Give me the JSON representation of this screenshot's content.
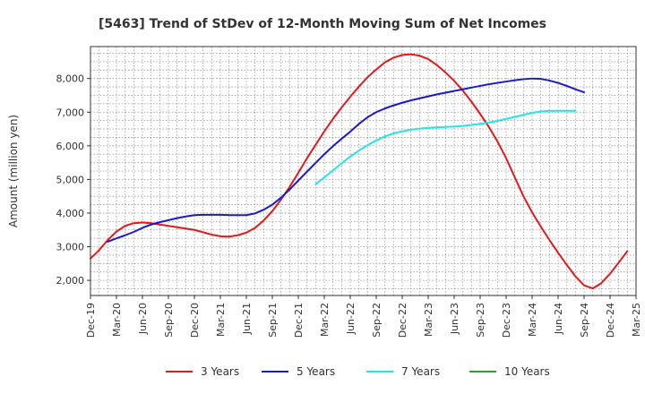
{
  "chart_data": {
    "type": "line",
    "title": "[5463]  Trend of StDev of 12-Month Moving Sum of Net Incomes",
    "ylabel": "Amount (million yen)",
    "xlabel": "",
    "ylim": [
      1550,
      8950
    ],
    "yticks": [
      2000,
      3000,
      4000,
      5000,
      6000,
      7000,
      8000
    ],
    "ytick_labels": [
      "2,000",
      "3,000",
      "4,000",
      "5,000",
      "6,000",
      "7,000",
      "8,000"
    ],
    "x_tick_labels": [
      "Dec-19",
      "Mar-20",
      "Jun-20",
      "Sep-20",
      "Dec-20",
      "Mar-21",
      "Jun-21",
      "Sep-21",
      "Dec-21",
      "Mar-22",
      "Jun-22",
      "Sep-22",
      "Dec-22",
      "Mar-23",
      "Jun-23",
      "Sep-23",
      "Dec-23",
      "Mar-24",
      "Jun-24",
      "Sep-24",
      "Dec-24",
      "Mar-25"
    ],
    "grid": true,
    "legend_position": "bottom",
    "series": [
      {
        "name": "3 Years",
        "color": "#e31a1c",
        "points": [
          [
            0,
            2650
          ],
          [
            1,
            2900
          ],
          [
            2,
            3200
          ],
          [
            3,
            3450
          ],
          [
            4,
            3620
          ],
          [
            5,
            3700
          ],
          [
            6,
            3720
          ],
          [
            7,
            3700
          ],
          [
            8,
            3660
          ],
          [
            9,
            3620
          ],
          [
            10,
            3580
          ],
          [
            11,
            3540
          ],
          [
            12,
            3500
          ],
          [
            13,
            3430
          ],
          [
            14,
            3360
          ],
          [
            15,
            3310
          ],
          [
            16,
            3300
          ],
          [
            17,
            3340
          ],
          [
            18,
            3420
          ],
          [
            19,
            3560
          ],
          [
            20,
            3780
          ],
          [
            21,
            4060
          ],
          [
            22,
            4400
          ],
          [
            23,
            4780
          ],
          [
            24,
            5200
          ],
          [
            25,
            5630
          ],
          [
            26,
            6030
          ],
          [
            27,
            6430
          ],
          [
            28,
            6800
          ],
          [
            29,
            7140
          ],
          [
            30,
            7460
          ],
          [
            31,
            7760
          ],
          [
            32,
            8040
          ],
          [
            33,
            8270
          ],
          [
            34,
            8480
          ],
          [
            35,
            8620
          ],
          [
            36,
            8700
          ],
          [
            37,
            8720
          ],
          [
            38,
            8680
          ],
          [
            39,
            8580
          ],
          [
            40,
            8400
          ],
          [
            41,
            8180
          ],
          [
            42,
            7930
          ],
          [
            43,
            7640
          ],
          [
            44,
            7310
          ],
          [
            45,
            6950
          ],
          [
            46,
            6560
          ],
          [
            47,
            6130
          ],
          [
            48,
            5630
          ],
          [
            49,
            5060
          ],
          [
            50,
            4500
          ],
          [
            51,
            4020
          ],
          [
            52,
            3600
          ],
          [
            53,
            3200
          ],
          [
            54,
            2820
          ],
          [
            55,
            2460
          ],
          [
            56,
            2120
          ],
          [
            57,
            1850
          ],
          [
            58,
            1760
          ],
          [
            59,
            1920
          ],
          [
            60,
            2200
          ],
          [
            61,
            2530
          ],
          [
            62,
            2870
          ]
        ]
      },
      {
        "name": "5 Years",
        "color": "#1a1acd",
        "points": [
          [
            2,
            3150
          ],
          [
            3,
            3250
          ],
          [
            4,
            3340
          ],
          [
            5,
            3440
          ],
          [
            6,
            3560
          ],
          [
            7,
            3660
          ],
          [
            8,
            3730
          ],
          [
            9,
            3790
          ],
          [
            10,
            3850
          ],
          [
            11,
            3900
          ],
          [
            12,
            3940
          ],
          [
            13,
            3950
          ],
          [
            14,
            3950
          ],
          [
            15,
            3950
          ],
          [
            16,
            3940
          ],
          [
            17,
            3940
          ],
          [
            18,
            3940
          ],
          [
            19,
            3990
          ],
          [
            20,
            4100
          ],
          [
            21,
            4250
          ],
          [
            22,
            4460
          ],
          [
            23,
            4700
          ],
          [
            24,
            4970
          ],
          [
            25,
            5230
          ],
          [
            26,
            5490
          ],
          [
            27,
            5750
          ],
          [
            28,
            5990
          ],
          [
            29,
            6210
          ],
          [
            30,
            6420
          ],
          [
            31,
            6650
          ],
          [
            32,
            6850
          ],
          [
            33,
            7000
          ],
          [
            34,
            7110
          ],
          [
            35,
            7200
          ],
          [
            36,
            7280
          ],
          [
            37,
            7350
          ],
          [
            38,
            7410
          ],
          [
            39,
            7470
          ],
          [
            40,
            7530
          ],
          [
            41,
            7580
          ],
          [
            42,
            7630
          ],
          [
            43,
            7680
          ],
          [
            44,
            7730
          ],
          [
            45,
            7780
          ],
          [
            46,
            7830
          ],
          [
            47,
            7870
          ],
          [
            48,
            7910
          ],
          [
            49,
            7950
          ],
          [
            50,
            7980
          ],
          [
            51,
            8000
          ],
          [
            52,
            7990
          ],
          [
            53,
            7940
          ],
          [
            54,
            7870
          ],
          [
            55,
            7780
          ],
          [
            56,
            7680
          ],
          [
            57,
            7590
          ]
        ]
      },
      {
        "name": "7 Years",
        "color": "#22e5e5",
        "points": [
          [
            26,
            4860
          ],
          [
            27,
            5060
          ],
          [
            28,
            5270
          ],
          [
            29,
            5480
          ],
          [
            30,
            5680
          ],
          [
            31,
            5860
          ],
          [
            32,
            6020
          ],
          [
            33,
            6160
          ],
          [
            34,
            6280
          ],
          [
            35,
            6370
          ],
          [
            36,
            6430
          ],
          [
            37,
            6480
          ],
          [
            38,
            6510
          ],
          [
            39,
            6530
          ],
          [
            40,
            6550
          ],
          [
            41,
            6560
          ],
          [
            42,
            6570
          ],
          [
            43,
            6590
          ],
          [
            44,
            6620
          ],
          [
            45,
            6650
          ],
          [
            46,
            6690
          ],
          [
            47,
            6740
          ],
          [
            48,
            6800
          ],
          [
            49,
            6860
          ],
          [
            50,
            6920
          ],
          [
            51,
            6980
          ],
          [
            52,
            7020
          ],
          [
            53,
            7040
          ],
          [
            54,
            7040
          ],
          [
            55,
            7040
          ],
          [
            56,
            7040
          ]
        ]
      },
      {
        "name": "10 Years",
        "color": "#2ca02c",
        "points": []
      }
    ]
  }
}
